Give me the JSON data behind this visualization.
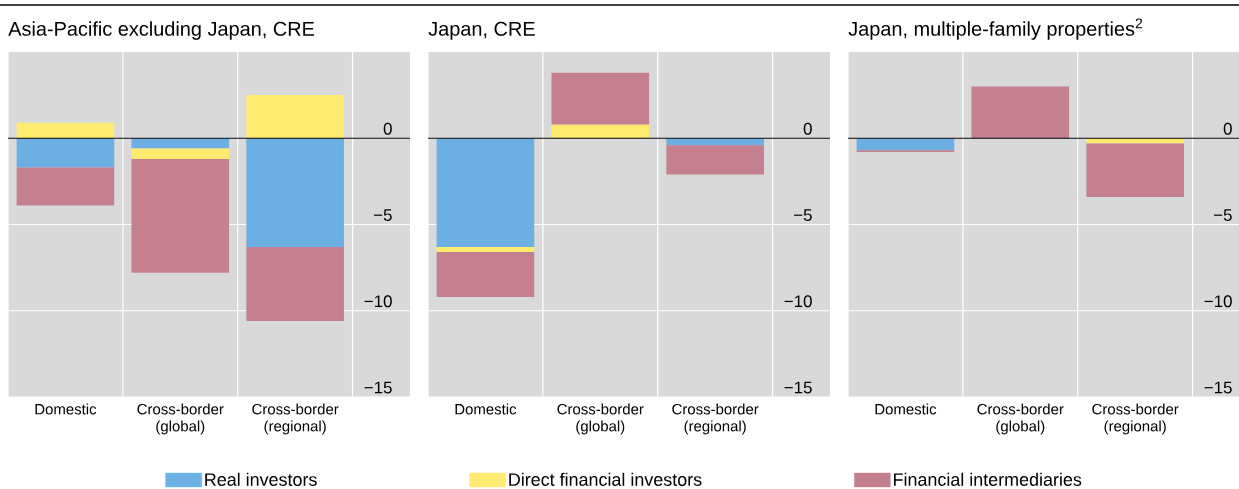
{
  "chart_data": [
    {
      "type": "bar",
      "title": "Asia-Pacific excluding Japan, CRE",
      "categories": [
        "Domestic",
        "Cross-border (global)",
        "Cross-border (regional)"
      ],
      "stacked": true,
      "grid": true,
      "legend": "bottom",
      "ylim": [
        -15,
        5
      ],
      "yticks": [
        0,
        {
          "value": -5,
          "label": "−5"
        },
        {
          "value": -10,
          "label": "−10"
        },
        {
          "value": -15,
          "label": "−15"
        }
      ],
      "series": [
        {
          "name": "Real investors",
          "color": "#6cb0e3",
          "values": [
            -1.7,
            -0.6,
            -6.3
          ]
        },
        {
          "name": "Direct financial investors",
          "color": "#ffeb70",
          "values": [
            0.9,
            -0.6,
            2.5
          ]
        },
        {
          "name": "Financial intermediaries",
          "color": "#c4808f",
          "values": [
            -2.2,
            -6.6,
            -4.3
          ]
        }
      ]
    },
    {
      "type": "bar",
      "title": "Japan, CRE",
      "categories": [
        "Domestic",
        "Cross-border (global)",
        "Cross-border (regional)"
      ],
      "stacked": true,
      "grid": true,
      "ylim": [
        -15,
        5
      ],
      "yticks": [
        0,
        {
          "value": -5,
          "label": "−5"
        },
        {
          "value": -10,
          "label": "−10"
        },
        {
          "value": -15,
          "label": "−15"
        }
      ],
      "series": [
        {
          "color": "#6cb0e3",
          "values": [
            -6.3,
            0,
            -0.4
          ]
        },
        {
          "color": "#ffeb70",
          "values": [
            -0.3,
            0.8,
            0
          ]
        },
        {
          "color": "#c4808f",
          "values": [
            -2.6,
            3.0,
            -1.7
          ]
        }
      ]
    },
    {
      "type": "bar",
      "title": "Japan, multiple-family properties$^{2}$",
      "categories": [
        "Domestic",
        "Cross-border (global)",
        "Cross-border (regional)"
      ],
      "stacked": true,
      "grid": true,
      "ylim": [
        -15,
        5
      ],
      "yticks": [
        0,
        {
          "value": -5,
          "label": "−5"
        },
        {
          "value": -10,
          "label": "−10"
        },
        {
          "value": -15,
          "label": "−15"
        }
      ],
      "series": [
        {
          "color": "#6cb0e3",
          "values": [
            -0.7,
            0,
            0
          ]
        },
        {
          "color": "#ffeb70",
          "values": [
            0,
            0,
            -0.3
          ]
        },
        {
          "color": "#c4808f",
          "values": [
            -0.1,
            3.0,
            -3.1
          ]
        }
      ]
    }
  ]
}
